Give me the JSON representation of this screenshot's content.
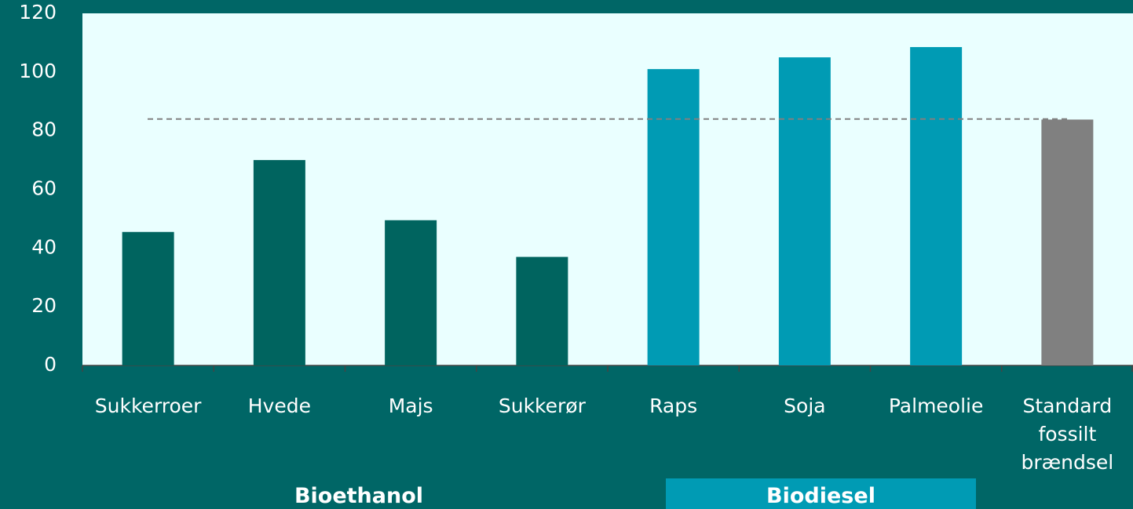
{
  "chart_data": {
    "type": "bar",
    "categories": [
      "Sukkerroer",
      "Hvede",
      "Majs",
      "Sukkerør",
      "Raps",
      "Soja",
      "Palmeolie",
      "Standard fossilt brændsel"
    ],
    "values": [
      45.5,
      70,
      49.5,
      37,
      101,
      105,
      108.5,
      83.8
    ],
    "colors": [
      "#00645f",
      "#00645f",
      "#00645f",
      "#00645f",
      "#009bb4",
      "#009bb4",
      "#009bb4",
      "#808080"
    ],
    "ylim": [
      0,
      120
    ],
    "yticks": [
      0,
      20,
      40,
      60,
      80,
      100,
      120
    ],
    "grid": false,
    "reference_line": 84,
    "groups": [
      "Bioethanol",
      "Biodiesel"
    ]
  }
}
